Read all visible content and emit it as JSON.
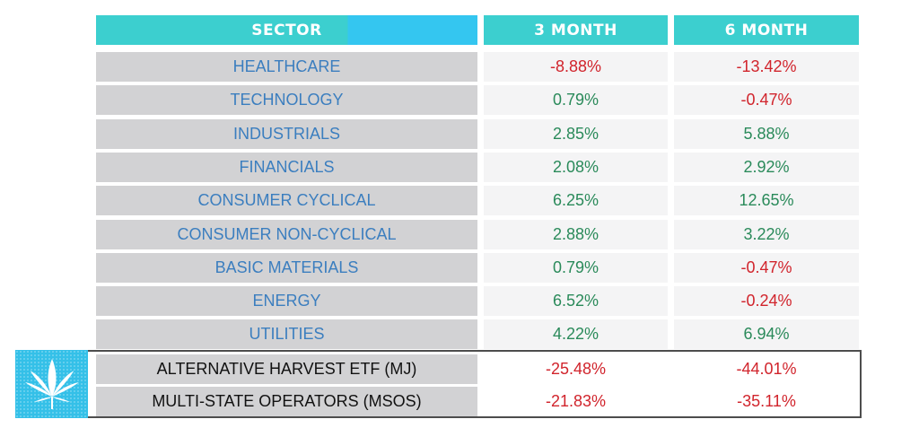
{
  "header": {
    "sector": "SECTOR",
    "three_month": "3 MONTH",
    "six_month": "6 MONTH"
  },
  "rows": [
    {
      "sector": "HEALTHCARE",
      "three_month": "-8.88%",
      "six_month": "-13.42%"
    },
    {
      "sector": "TECHNOLOGY",
      "three_month": "0.79%",
      "six_month": "-0.47%"
    },
    {
      "sector": "INDUSTRIALS",
      "three_month": "2.85%",
      "six_month": "5.88%"
    },
    {
      "sector": "FINANCIALS",
      "three_month": "2.08%",
      "six_month": "2.92%"
    },
    {
      "sector": "CONSUMER CYCLICAL",
      "three_month": "6.25%",
      "six_month": "12.65%"
    },
    {
      "sector": "CONSUMER NON-CYCLICAL",
      "three_month": "2.88%",
      "six_month": "3.22%"
    },
    {
      "sector": "BASIC MATERIALS",
      "three_month": "0.79%",
      "six_month": "-0.47%"
    },
    {
      "sector": "ENERGY",
      "three_month": "6.52%",
      "six_month": "-0.24%"
    },
    {
      "sector": "UTILITIES",
      "three_month": "4.22%",
      "six_month": "6.94%"
    }
  ],
  "etf_rows": [
    {
      "sector": "ALTERNATIVE HARVEST ETF (MJ)",
      "three_month": "-25.48%",
      "six_month": "-44.01%"
    },
    {
      "sector": "MULTI-STATE OPERATORS (MSOS)",
      "three_month": "-21.83%",
      "six_month": "-35.11%"
    }
  ],
  "icons": {
    "cannabis": "cannabis-leaf-icon"
  },
  "colors": {
    "header_teal": "#3ccfcf",
    "header_blue": "#34c6f0",
    "positive": "#2a8a5a",
    "negative": "#d1242c",
    "sector_text": "#3b7ebf"
  }
}
